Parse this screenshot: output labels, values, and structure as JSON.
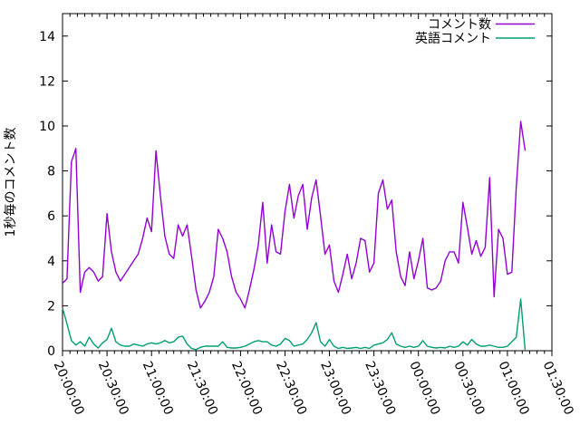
{
  "chart_data": {
    "type": "line",
    "title": "",
    "xlabel": "",
    "ylabel": "1秒毎のコメント数",
    "ylim": [
      0,
      15
    ],
    "yticks": [
      0,
      2,
      4,
      6,
      8,
      10,
      12,
      14
    ],
    "x_tick_labels": [
      "20:00:00",
      "20:30:00",
      "21:00:00",
      "21:30:00",
      "22:00:00",
      "22:30:00",
      "23:00:00",
      "23:30:00",
      "00:00:00",
      "00:30:00",
      "01:00:00",
      "01:30:00"
    ],
    "x_axis_span_minutes": 330,
    "x_minor_tick_minutes": 5,
    "grid": false,
    "legend_position": "top-right-inside",
    "series_t_start": "20:00:00",
    "series_t_step_minutes": 3,
    "series": [
      {
        "name": "コメント数",
        "color": "#9400d3",
        "values": [
          3.0,
          3.2,
          8.4,
          9.0,
          2.6,
          3.5,
          3.7,
          3.5,
          3.1,
          3.3,
          6.1,
          4.4,
          3.5,
          3.1,
          3.4,
          3.7,
          4.0,
          4.3,
          5.0,
          5.9,
          5.3,
          8.9,
          6.9,
          5.1,
          4.3,
          4.1,
          5.6,
          5.1,
          5.6,
          4.2,
          2.7,
          1.9,
          2.2,
          2.6,
          3.3,
          5.4,
          5.0,
          4.4,
          3.3,
          2.6,
          2.3,
          1.9,
          2.7,
          3.6,
          4.7,
          6.6,
          3.9,
          5.6,
          4.4,
          4.3,
          6.2,
          7.4,
          5.9,
          6.9,
          7.4,
          5.4,
          6.8,
          7.6,
          6.0,
          4.3,
          4.7,
          3.1,
          2.6,
          3.4,
          4.3,
          3.2,
          3.9,
          5.0,
          4.9,
          3.5,
          3.9,
          7.0,
          7.6,
          6.3,
          6.7,
          4.4,
          3.3,
          2.9,
          4.4,
          3.2,
          4.0,
          5.0,
          2.8,
          2.7,
          2.8,
          3.1,
          4.0,
          4.4,
          4.4,
          3.9,
          6.6,
          5.5,
          4.3,
          4.9,
          4.2,
          4.6,
          7.7,
          2.4,
          5.4,
          5.0,
          3.4,
          3.5,
          7.3,
          10.2,
          8.9
        ]
      },
      {
        "name": "英語コメント",
        "color": "#009e73",
        "values": [
          1.9,
          1.2,
          0.45,
          0.25,
          0.4,
          0.2,
          0.6,
          0.3,
          0.12,
          0.35,
          0.5,
          1.0,
          0.4,
          0.25,
          0.2,
          0.2,
          0.3,
          0.25,
          0.2,
          0.3,
          0.35,
          0.3,
          0.35,
          0.45,
          0.35,
          0.4,
          0.6,
          0.65,
          0.3,
          0.1,
          0.05,
          0.15,
          0.2,
          0.2,
          0.2,
          0.2,
          0.4,
          0.15,
          0.12,
          0.12,
          0.15,
          0.2,
          0.3,
          0.4,
          0.45,
          0.4,
          0.4,
          0.25,
          0.2,
          0.3,
          0.55,
          0.45,
          0.2,
          0.25,
          0.3,
          0.5,
          0.8,
          1.25,
          0.4,
          0.2,
          0.5,
          0.2,
          0.1,
          0.15,
          0.1,
          0.12,
          0.15,
          0.1,
          0.15,
          0.1,
          0.25,
          0.3,
          0.35,
          0.5,
          0.8,
          0.3,
          0.2,
          0.15,
          0.2,
          0.15,
          0.2,
          0.45,
          0.2,
          0.15,
          0.12,
          0.15,
          0.12,
          0.2,
          0.15,
          0.2,
          0.4,
          0.25,
          0.5,
          0.3,
          0.2,
          0.2,
          0.25,
          0.2,
          0.15,
          0.15,
          0.2,
          0.4,
          0.6,
          2.3,
          0.0
        ]
      }
    ],
    "colors": {
      "series1": "#9400d3",
      "series2": "#009e73",
      "axis": "#000000",
      "text": "#000000",
      "background": "#ffffff"
    }
  }
}
